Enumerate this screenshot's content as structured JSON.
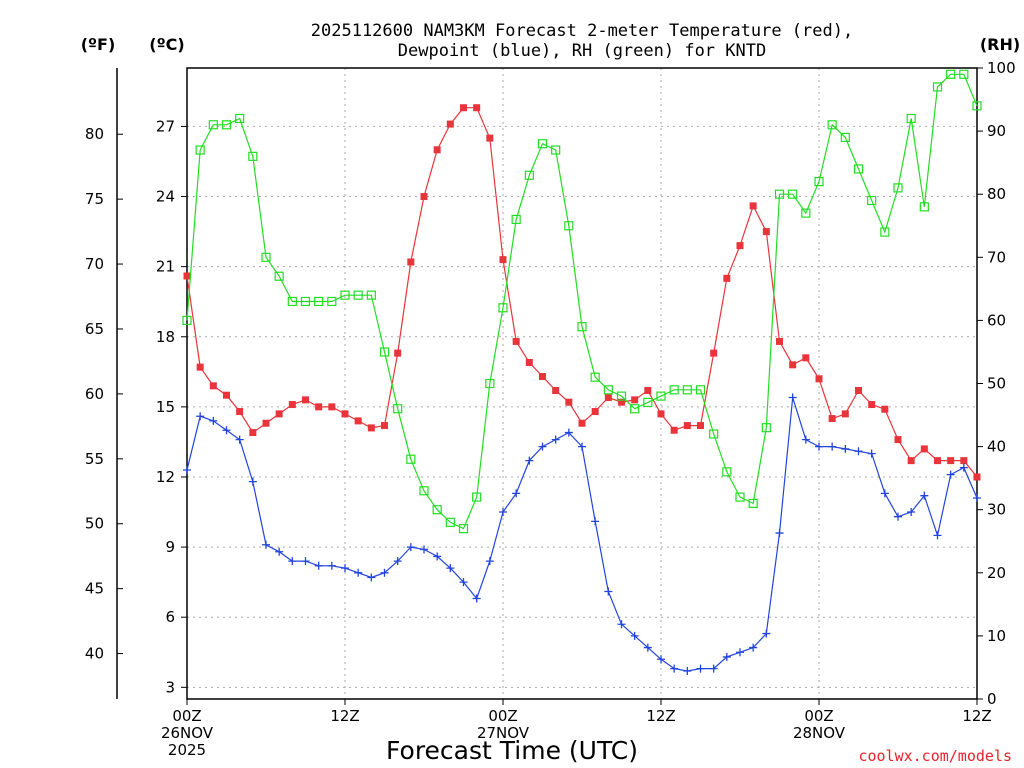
{
  "chart_data": {
    "type": "line",
    "title_line1": "2025112600 NAM3KM Forecast 2-meter Temperature (red),",
    "title_line2": "Dewpoint (blue), RH (green) for KNTD",
    "unit_f": "(ºF)",
    "unit_c": "(ºC)",
    "unit_rh": "(RH)",
    "xlabel": "Forecast Time (UTC)",
    "credit": "coolwx.com/models",
    "x_range_hours": [
      0,
      60
    ],
    "c_range": [
      2.5,
      29.5
    ],
    "rh_range": [
      0,
      100
    ],
    "x_ticks": [
      {
        "hour": 0,
        "lines": [
          "00Z",
          "26NOV",
          "2025"
        ]
      },
      {
        "hour": 12,
        "lines": [
          "12Z"
        ]
      },
      {
        "hour": 24,
        "lines": [
          "00Z",
          "27NOV"
        ]
      },
      {
        "hour": 36,
        "lines": [
          "12Z"
        ]
      },
      {
        "hour": 48,
        "lines": [
          "00Z",
          "28NOV"
        ]
      },
      {
        "hour": 60,
        "lines": [
          "12Z"
        ]
      }
    ],
    "c_ticks": [
      3,
      6,
      9,
      12,
      15,
      18,
      21,
      24,
      27
    ],
    "f_ticks": [
      40,
      45,
      50,
      55,
      60,
      65,
      70,
      75,
      80
    ],
    "rh_ticks": [
      0,
      10,
      20,
      30,
      40,
      50,
      60,
      70,
      80,
      90,
      100
    ],
    "hours": [
      0,
      1,
      2,
      3,
      4,
      5,
      6,
      7,
      8,
      9,
      10,
      11,
      12,
      13,
      14,
      15,
      16,
      17,
      18,
      19,
      20,
      21,
      22,
      23,
      24,
      25,
      26,
      27,
      28,
      29,
      30,
      31,
      32,
      33,
      34,
      35,
      36,
      37,
      38,
      39,
      40,
      41,
      42,
      43,
      44,
      45,
      46,
      47,
      48,
      49,
      50,
      51,
      52,
      53,
      54,
      55,
      56,
      57,
      58,
      59,
      60
    ],
    "series": [
      {
        "name": "2-meter Temperature",
        "unit": "C",
        "color": "#e8343a",
        "marker": "filled-square",
        "values": [
          20.6,
          16.7,
          15.9,
          15.5,
          14.8,
          13.9,
          14.3,
          14.7,
          15.1,
          15.3,
          15.0,
          15.0,
          14.7,
          14.4,
          14.1,
          14.2,
          17.3,
          21.2,
          24.0,
          26.0,
          27.1,
          27.8,
          27.8,
          26.5,
          21.3,
          17.8,
          16.9,
          16.3,
          15.7,
          15.2,
          14.3,
          14.8,
          15.4,
          15.2,
          15.3,
          15.7,
          14.7,
          14.0,
          14.2,
          14.2,
          17.3,
          20.5,
          21.9,
          23.6,
          22.5,
          17.8,
          16.8,
          17.1,
          16.2,
          14.5,
          14.7,
          15.7,
          15.1,
          14.9,
          13.6,
          12.7,
          13.2,
          12.7,
          12.7,
          12.7,
          12.0
        ]
      },
      {
        "name": "Dewpoint",
        "unit": "C",
        "color": "#2244dd",
        "marker": "plus",
        "values": [
          12.3,
          14.6,
          14.4,
          14.0,
          13.6,
          11.8,
          9.1,
          8.8,
          8.4,
          8.4,
          8.2,
          8.2,
          8.1,
          7.9,
          7.7,
          7.9,
          8.4,
          9.0,
          8.9,
          8.6,
          8.1,
          7.5,
          6.8,
          8.4,
          10.5,
          11.3,
          12.7,
          13.3,
          13.6,
          13.9,
          13.3,
          10.1,
          7.1,
          5.7,
          5.2,
          4.7,
          4.2,
          3.8,
          3.7,
          3.8,
          3.8,
          4.3,
          4.5,
          4.7,
          5.3,
          9.6,
          15.4,
          13.6,
          13.3,
          13.3,
          13.2,
          13.1,
          13.0,
          11.3,
          10.3,
          10.5,
          11.2,
          9.5,
          12.1,
          12.4,
          11.1
        ]
      },
      {
        "name": "RH",
        "unit": "%",
        "color": "#22dd22",
        "marker": "open-square",
        "values": [
          60,
          87,
          91,
          91,
          92,
          86,
          70,
          67,
          63,
          63,
          63,
          63,
          64,
          64,
          64,
          55,
          46,
          38,
          33,
          30,
          28,
          27,
          32,
          50,
          62,
          76,
          83,
          88,
          87,
          75,
          59,
          51,
          49,
          48,
          46,
          47,
          48,
          49,
          49,
          49,
          42,
          36,
          32,
          31,
          43,
          80,
          80,
          77,
          82,
          91,
          89,
          84,
          79,
          74,
          81,
          92,
          78,
          97,
          99,
          99,
          94
        ]
      }
    ]
  }
}
